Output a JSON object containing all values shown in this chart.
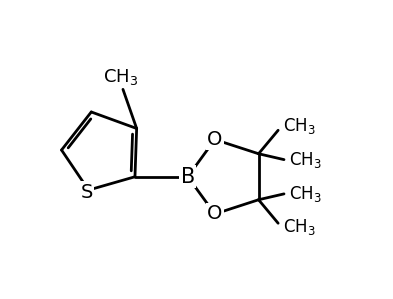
{
  "background_color": "#ffffff",
  "line_color": "#000000",
  "line_width": 2.0,
  "font_size": 12,
  "figsize": [
    3.93,
    2.99
  ],
  "dpi": 100,
  "xlim": [
    0.0,
    9.0
  ],
  "ylim": [
    0.0,
    7.5
  ]
}
